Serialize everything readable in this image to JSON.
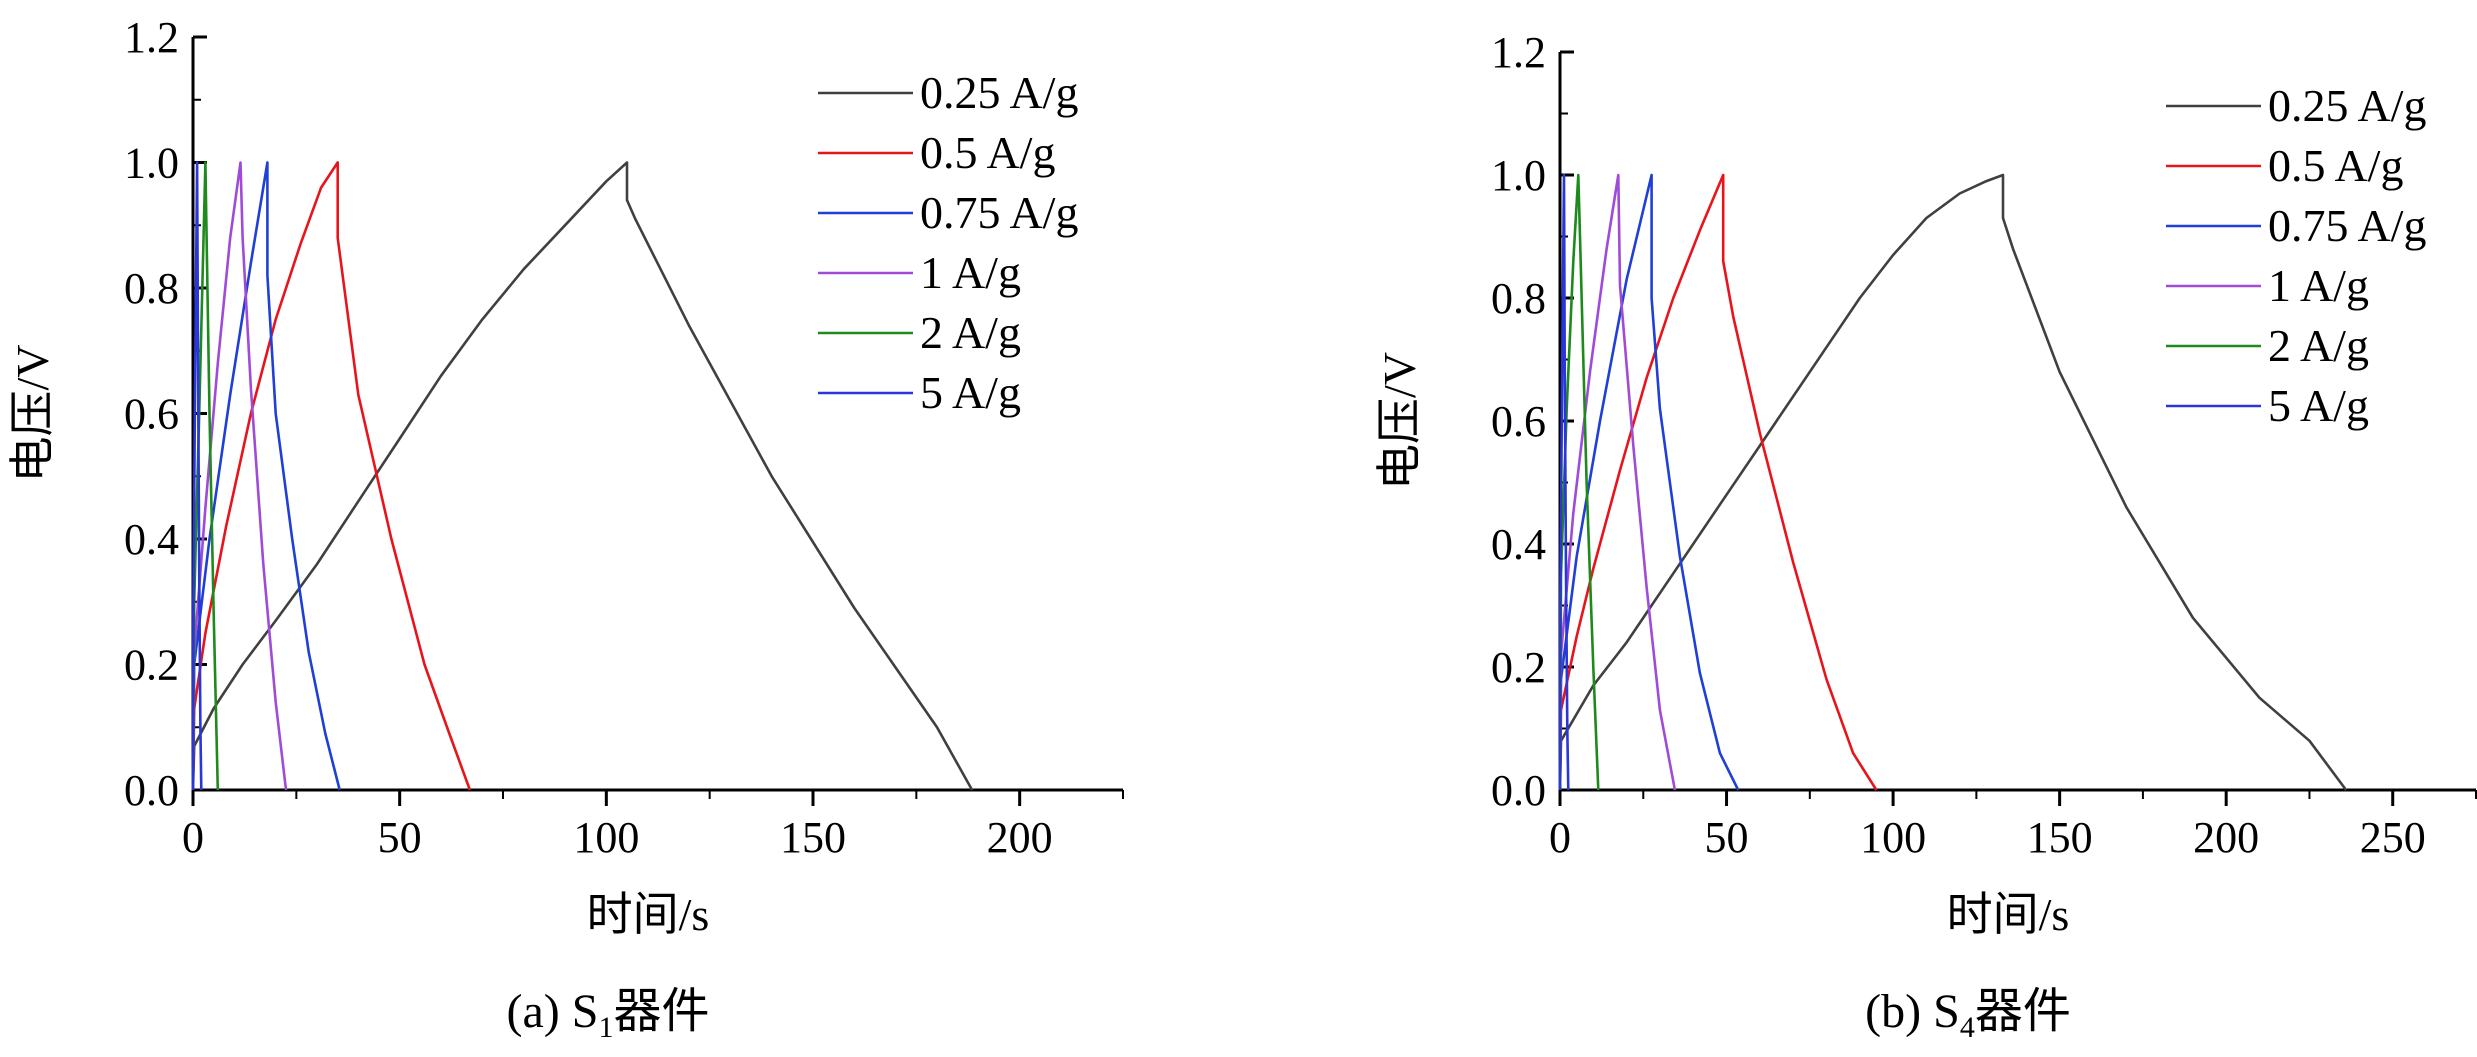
{
  "chart_data": [
    {
      "type": "line",
      "caption_main": "(a) S",
      "caption_sub": "1",
      "caption_tail": "器件",
      "xlabel": "时间/s",
      "ylabel": "电压/V",
      "xlim": [
        0,
        225
      ],
      "ylim": [
        0,
        1.2
      ],
      "xticks": [
        0,
        50,
        100,
        150,
        200
      ],
      "yticks": [
        "0.0",
        "0.2",
        "0.4",
        "0.6",
        "0.8",
        "1.0",
        "1.2"
      ],
      "grid": false,
      "legend_position": "top-right",
      "series": [
        {
          "name": "0.25 A/g",
          "color": "#404040",
          "x": [
            0,
            0.3,
            5,
            12,
            20,
            30,
            40,
            50,
            60,
            70,
            80,
            90,
            100,
            105,
            105,
            107,
            120,
            140,
            160,
            180,
            188.5
          ],
          "y": [
            0,
            0.07,
            0.13,
            0.2,
            0.27,
            0.36,
            0.46,
            0.56,
            0.66,
            0.75,
            0.83,
            0.9,
            0.97,
            1.0,
            0.94,
            0.91,
            0.74,
            0.5,
            0.29,
            0.1,
            0.0
          ]
        },
        {
          "name": "0.5 A/g",
          "color": "#e8141c",
          "x": [
            0,
            0.3,
            3,
            8,
            14,
            20,
            26,
            31,
            35,
            35,
            40,
            48,
            56,
            62,
            67
          ],
          "y": [
            0,
            0.13,
            0.25,
            0.42,
            0.6,
            0.75,
            0.87,
            0.96,
            1.0,
            0.88,
            0.63,
            0.4,
            0.2,
            0.09,
            0.0
          ]
        },
        {
          "name": "0.75 A/g",
          "color": "#1f3fd6",
          "x": [
            0,
            0.3,
            4,
            9,
            14,
            18,
            18,
            20,
            24,
            28,
            32,
            35.5
          ],
          "y": [
            0,
            0.2,
            0.4,
            0.63,
            0.84,
            1.0,
            0.82,
            0.6,
            0.4,
            0.22,
            0.09,
            0.0
          ]
        },
        {
          "name": "1 A/g",
          "color": "#a04bd8",
          "x": [
            0,
            0.3,
            3,
            6,
            9,
            11.5,
            12,
            14,
            17,
            20,
            22.5
          ],
          "y": [
            0,
            0.22,
            0.45,
            0.68,
            0.88,
            1.0,
            0.88,
            0.64,
            0.36,
            0.14,
            0.0
          ]
        },
        {
          "name": "2 A/g",
          "color": "#1e8a1e",
          "x": [
            0,
            0.3,
            1.5,
            3,
            3.2,
            4,
            5,
            6
          ],
          "y": [
            0,
            0.3,
            0.6,
            1.0,
            0.92,
            0.6,
            0.28,
            0.0
          ]
        },
        {
          "name": "5 A/g",
          "color": "#2a36d8",
          "x": [
            0,
            0.1,
            0.5,
            1,
            1.2,
            1.5,
            1.8,
            2
          ],
          "y": [
            0,
            0.3,
            0.65,
            1.0,
            0.7,
            0.35,
            0.1,
            0.0
          ]
        }
      ]
    },
    {
      "type": "line",
      "caption_main": "(b) S",
      "caption_sub": "4",
      "caption_tail": "器件",
      "xlabel": "时间/s",
      "ylabel": "电压/V",
      "xlim": [
        0,
        275
      ],
      "ylim": [
        0,
        1.2
      ],
      "xticks": [
        0,
        50,
        100,
        150,
        200,
        250
      ],
      "yticks": [
        "0.0",
        "0.2",
        "0.4",
        "0.6",
        "0.8",
        "1.0",
        "1.2"
      ],
      "grid": false,
      "legend_position": "top-right",
      "series": [
        {
          "name": "0.25 A/g",
          "color": "#404040",
          "x": [
            0,
            0.3,
            10,
            20,
            30,
            40,
            50,
            60,
            70,
            80,
            90,
            100,
            110,
            120,
            128,
            133,
            133,
            136,
            150,
            170,
            190,
            210,
            225,
            236
          ],
          "y": [
            0,
            0.08,
            0.17,
            0.24,
            0.32,
            0.4,
            0.48,
            0.56,
            0.64,
            0.72,
            0.8,
            0.87,
            0.93,
            0.97,
            0.99,
            1.0,
            0.93,
            0.88,
            0.68,
            0.46,
            0.28,
            0.15,
            0.08,
            0.0
          ]
        },
        {
          "name": "0.5 A/g",
          "color": "#e8141c",
          "x": [
            0,
            0.3,
            5,
            10,
            18,
            26,
            34,
            42,
            49,
            49,
            52,
            60,
            70,
            80,
            88,
            95
          ],
          "y": [
            0,
            0.13,
            0.25,
            0.36,
            0.52,
            0.67,
            0.8,
            0.91,
            1.0,
            0.86,
            0.77,
            0.58,
            0.37,
            0.18,
            0.06,
            0.0
          ]
        },
        {
          "name": "0.75 A/g",
          "color": "#1f3fd6",
          "x": [
            0,
            0.3,
            5,
            12,
            20,
            27.5,
            27.5,
            30,
            36,
            42,
            48,
            53.5
          ],
          "y": [
            0,
            0.18,
            0.38,
            0.6,
            0.83,
            1.0,
            0.8,
            0.62,
            0.38,
            0.19,
            0.06,
            0.0
          ]
        },
        {
          "name": "1 A/g",
          "color": "#a04bd8",
          "x": [
            0,
            0.3,
            4,
            9,
            14,
            17.5,
            18,
            22,
            26,
            30,
            34.5
          ],
          "y": [
            0,
            0.22,
            0.45,
            0.68,
            0.88,
            1.0,
            0.82,
            0.56,
            0.33,
            0.13,
            0.0
          ]
        },
        {
          "name": "2 A/g",
          "color": "#1e8a1e",
          "x": [
            0,
            0.3,
            2,
            4,
            5.5,
            6,
            8,
            10,
            11.5
          ],
          "y": [
            0,
            0.35,
            0.62,
            0.86,
            1.0,
            0.9,
            0.5,
            0.2,
            0.0
          ]
        },
        {
          "name": "5 A/g",
          "color": "#2a36d8",
          "x": [
            0,
            0.1,
            0.6,
            1.2,
            1.4,
            1.8,
            2.2,
            2.5
          ],
          "y": [
            0,
            0.3,
            0.65,
            1.0,
            0.7,
            0.35,
            0.1,
            0.0
          ]
        }
      ]
    }
  ]
}
